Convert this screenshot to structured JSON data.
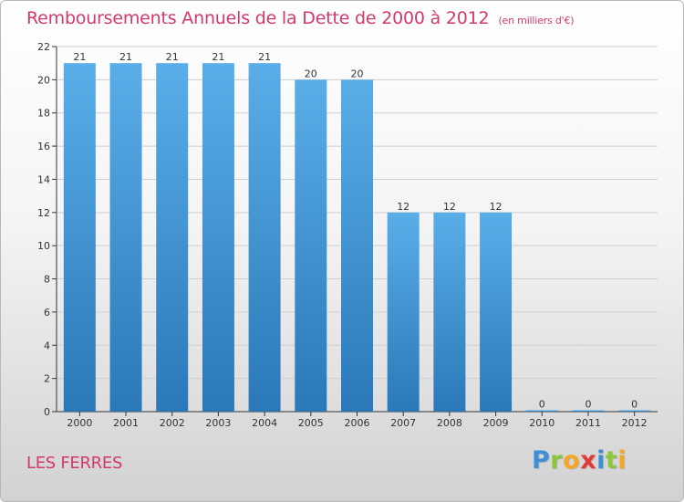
{
  "title": "Remboursements Annuels de la Dette de 2000 à 2012",
  "unit_note": "(en milliers d'€)",
  "commune": "LES FERRES",
  "brand": {
    "name": "Proxiti",
    "letters": [
      {
        "ch": "P",
        "color": "#3d8fd6"
      },
      {
        "ch": "r",
        "color": "#8cc63f"
      },
      {
        "ch": "o",
        "color": "#f5a623"
      },
      {
        "ch": "x",
        "color": "#e53935"
      },
      {
        "ch": "i",
        "color": "#3d8fd6"
      },
      {
        "ch": "t",
        "color": "#8cc63f"
      },
      {
        "ch": "i",
        "color": "#f5a623"
      }
    ]
  },
  "colors": {
    "title": "#d13a6a",
    "bar_top": "#5aaee8",
    "bar_bottom": "#2a78b8",
    "axis": "#333333",
    "grid": "#cfcfcf"
  },
  "chart_data": {
    "type": "bar",
    "categories": [
      "2000",
      "2001",
      "2002",
      "2003",
      "2004",
      "2005",
      "2006",
      "2007",
      "2008",
      "2009",
      "2010",
      "2011",
      "2012"
    ],
    "values": [
      21,
      21,
      21,
      21,
      21,
      20,
      20,
      12,
      12,
      12,
      0,
      0,
      0
    ],
    "ylim": [
      0,
      22
    ],
    "yticks": [
      0,
      2,
      4,
      6,
      8,
      10,
      12,
      14,
      16,
      18,
      20,
      22
    ],
    "grid": true,
    "data_labels": true
  }
}
